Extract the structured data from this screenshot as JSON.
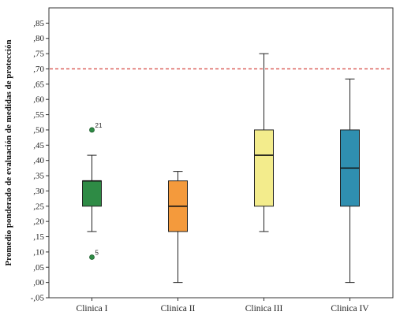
{
  "chart_data": {
    "type": "boxplot",
    "ylabel": "Promedio ponderado de evaluación de medidas de protección",
    "xlabel": "",
    "ylim": [
      -0.05,
      0.9
    ],
    "yticks": [
      ",85",
      ",80",
      ",75",
      ",70",
      ",65",
      ",60",
      ",55",
      ",50",
      ",45",
      ",40",
      ",35",
      ",30",
      ",25",
      ",20",
      ",15",
      ",10",
      ",05",
      ",00",
      "-,05"
    ],
    "ytick_values": [
      0.85,
      0.8,
      0.75,
      0.7,
      0.65,
      0.6,
      0.55,
      0.5,
      0.45,
      0.4,
      0.35,
      0.3,
      0.25,
      0.2,
      0.15,
      0.1,
      0.05,
      0.0,
      -0.05
    ],
    "reference_line": {
      "value": 0.7,
      "color": "#d9534f",
      "style": "dashed"
    },
    "grid": false,
    "categories": [
      "Clinica I",
      "Clinica II",
      "Clinica III",
      "Clinica IV"
    ],
    "boxes": [
      {
        "category": "Clinica I",
        "whisker_low": 0.167,
        "q1": 0.25,
        "median": 0.333,
        "q3": 0.333,
        "whisker_high": 0.417,
        "color": "#2e8b45",
        "outliers": [
          {
            "value": 0.5,
            "label": "21"
          },
          {
            "value": 0.083,
            "label": "5"
          }
        ]
      },
      {
        "category": "Clinica II",
        "whisker_low": 0.0,
        "q1": 0.167,
        "median": 0.25,
        "q3": 0.333,
        "whisker_high": 0.364,
        "color": "#f49a3c",
        "outliers": []
      },
      {
        "category": "Clinica III",
        "whisker_low": 0.167,
        "q1": 0.25,
        "median": 0.417,
        "q3": 0.5,
        "whisker_high": 0.75,
        "color": "#f3ec8c",
        "outliers": []
      },
      {
        "category": "Clinica IV",
        "whisker_low": 0.0,
        "q1": 0.25,
        "median": 0.375,
        "q3": 0.5,
        "whisker_high": 0.667,
        "color": "#2f8fb0",
        "outliers": []
      }
    ]
  }
}
